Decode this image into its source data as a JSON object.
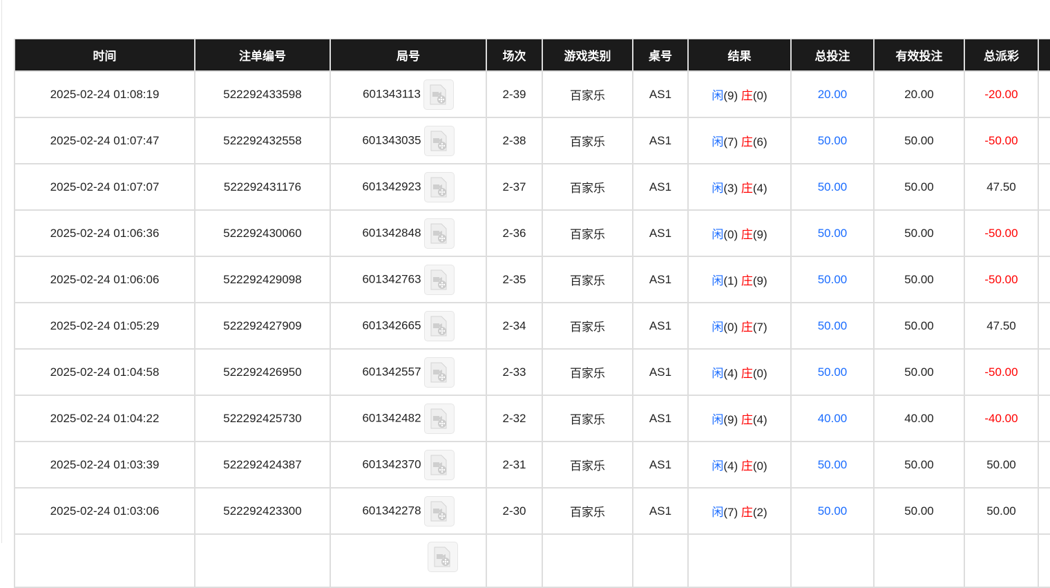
{
  "headers": [
    "时间",
    "注单编号",
    "局号",
    "场次",
    "游戏类别",
    "桌号",
    "结果",
    "总投注",
    "有效投注",
    "总派彩"
  ],
  "colors": {
    "player": "#1a6cff",
    "banker": "#ff0000",
    "negative": "#ff0000",
    "header_bg": "#1b1b1b"
  },
  "labels": {
    "player": "闲",
    "banker": "庄"
  },
  "rows": [
    {
      "time": "2025-02-24 01:08:19",
      "bet_no": "522292433598",
      "round": "601343113",
      "shoe": "2-39",
      "game": "百家乐",
      "table": "AS1",
      "player": "(9)",
      "banker": "(0)",
      "total": "20.00",
      "valid": "20.00",
      "payout": "-20.00"
    },
    {
      "time": "2025-02-24 01:07:47",
      "bet_no": "522292432558",
      "round": "601343035",
      "shoe": "2-38",
      "game": "百家乐",
      "table": "AS1",
      "player": "(7)",
      "banker": "(6)",
      "total": "50.00",
      "valid": "50.00",
      "payout": "-50.00"
    },
    {
      "time": "2025-02-24 01:07:07",
      "bet_no": "522292431176",
      "round": "601342923",
      "shoe": "2-37",
      "game": "百家乐",
      "table": "AS1",
      "player": "(3)",
      "banker": "(4)",
      "total": "50.00",
      "valid": "50.00",
      "payout": "47.50"
    },
    {
      "time": "2025-02-24 01:06:36",
      "bet_no": "522292430060",
      "round": "601342848",
      "shoe": "2-36",
      "game": "百家乐",
      "table": "AS1",
      "player": "(0)",
      "banker": "(9)",
      "total": "50.00",
      "valid": "50.00",
      "payout": "-50.00"
    },
    {
      "time": "2025-02-24 01:06:06",
      "bet_no": "522292429098",
      "round": "601342763",
      "shoe": "2-35",
      "game": "百家乐",
      "table": "AS1",
      "player": "(1)",
      "banker": "(9)",
      "total": "50.00",
      "valid": "50.00",
      "payout": "-50.00"
    },
    {
      "time": "2025-02-24 01:05:29",
      "bet_no": "522292427909",
      "round": "601342665",
      "shoe": "2-34",
      "game": "百家乐",
      "table": "AS1",
      "player": "(0)",
      "banker": "(7)",
      "total": "50.00",
      "valid": "50.00",
      "payout": "47.50"
    },
    {
      "time": "2025-02-24 01:04:58",
      "bet_no": "522292426950",
      "round": "601342557",
      "shoe": "2-33",
      "game": "百家乐",
      "table": "AS1",
      "player": "(4)",
      "banker": "(0)",
      "total": "50.00",
      "valid": "50.00",
      "payout": "-50.00"
    },
    {
      "time": "2025-02-24 01:04:22",
      "bet_no": "522292425730",
      "round": "601342482",
      "shoe": "2-32",
      "game": "百家乐",
      "table": "AS1",
      "player": "(9)",
      "banker": "(4)",
      "total": "40.00",
      "valid": "40.00",
      "payout": "-40.00"
    },
    {
      "time": "2025-02-24 01:03:39",
      "bet_no": "522292424387",
      "round": "601342370",
      "shoe": "2-31",
      "game": "百家乐",
      "table": "AS1",
      "player": "(4)",
      "banker": "(0)",
      "total": "50.00",
      "valid": "50.00",
      "payout": "50.00"
    },
    {
      "time": "2025-02-24 01:03:06",
      "bet_no": "522292423300",
      "round": "601342278",
      "shoe": "2-30",
      "game": "百家乐",
      "table": "AS1",
      "player": "(7)",
      "banker": "(2)",
      "total": "50.00",
      "valid": "50.00",
      "payout": "50.00"
    }
  ]
}
